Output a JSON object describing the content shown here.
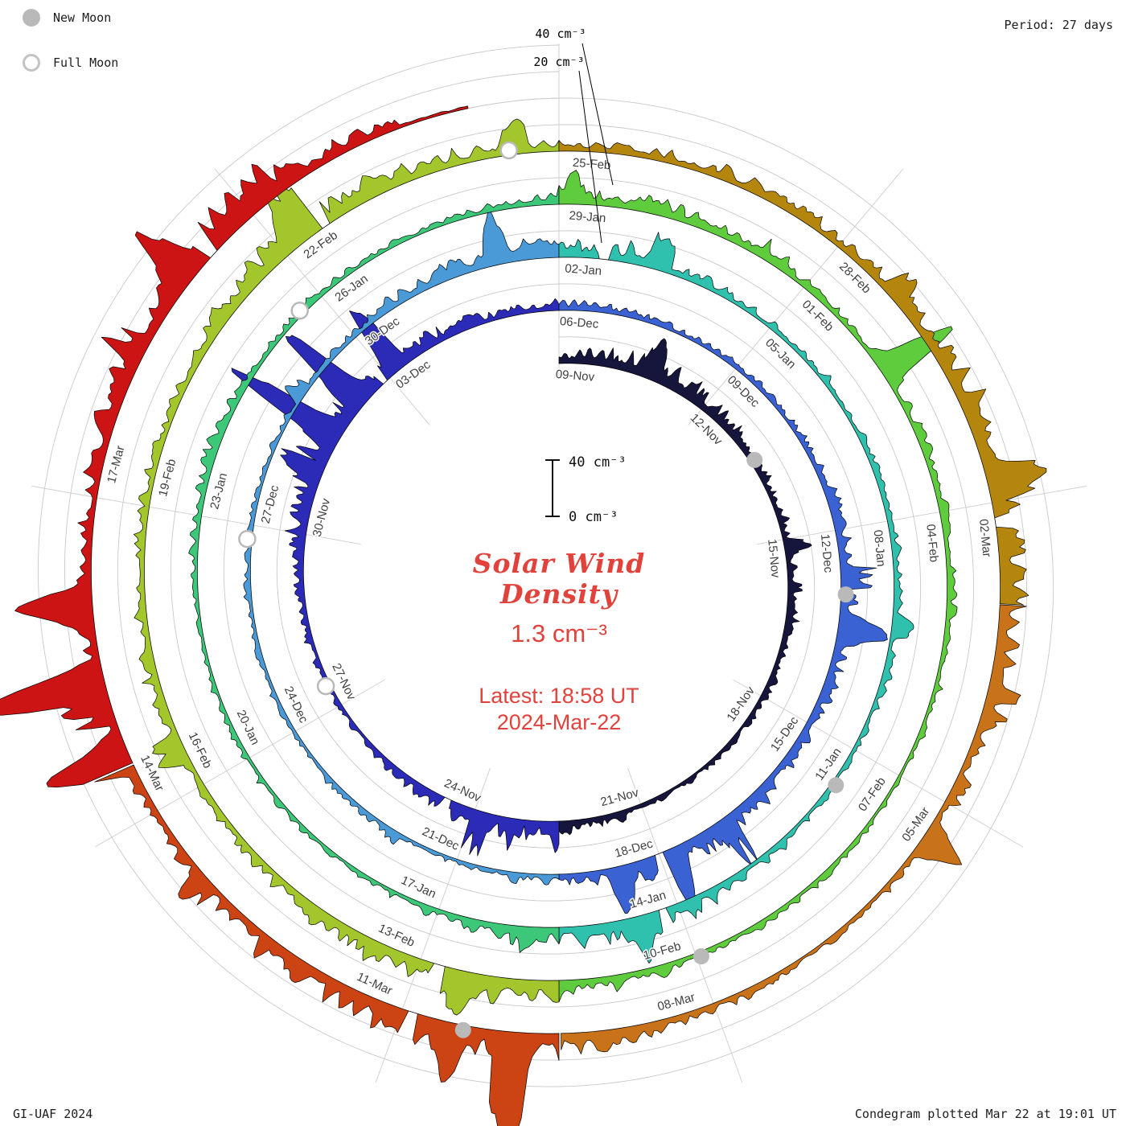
{
  "header": {
    "period_label": "Period: 27 days"
  },
  "legend": {
    "new_moon": "New Moon",
    "full_moon": "Full Moon"
  },
  "footer": {
    "credit": "GI-UAF 2024",
    "plotted": "Condegram plotted Mar 22 at 19:01 UT"
  },
  "center": {
    "title_line1": "Solar Wind",
    "title_line2": "Density",
    "current_value": "1.3 cm⁻³",
    "latest_line1": "Latest: 18:58 UT",
    "latest_line2": "2024-Mar-22",
    "scalebar_top": "40 cm⁻³",
    "scalebar_bottom": "0 cm⁻³"
  },
  "scale_annotations": [
    "40 cm⁻³",
    "20 cm⁻³"
  ],
  "colors": {
    "accent_red": "#e2423c",
    "grid": "#c9c9c9",
    "spoke": "#d2d2d2",
    "trace_outline": "#000000",
    "moon_gray": "#b9b9b9",
    "label_gray": "#3f3f3f"
  },
  "chart_data": {
    "type": "area",
    "layout": "spiral condegram, one 27-day solar rotation per revolution, time runs clockwise from top, radius grows outward with time",
    "title": "Solar Wind Density",
    "units": "cm⁻³",
    "period_days": 27,
    "start_label": "09-Nov",
    "end_label": "2024-Mar-22",
    "radial_scale": {
      "min": 0,
      "gridline_step": 20,
      "gridline_max": 40
    },
    "days_per_label": 3,
    "date_labels": [
      "09-Nov",
      "12-Nov",
      "15-Nov",
      "18-Nov",
      "21-Nov",
      "24-Nov",
      "27-Nov",
      "30-Nov",
      "03-Dec",
      "06-Dec",
      "09-Dec",
      "12-Dec",
      "15-Dec",
      "18-Dec",
      "21-Dec",
      "24-Dec",
      "27-Dec",
      "30-Dec",
      "02-Jan",
      "05-Jan",
      "08-Jan",
      "11-Jan",
      "14-Jan",
      "17-Jan",
      "20-Jan",
      "23-Jan",
      "26-Jan",
      "29-Jan",
      "01-Feb",
      "04-Feb",
      "07-Feb",
      "10-Feb",
      "13-Feb",
      "16-Feb",
      "19-Feb",
      "22-Feb",
      "25-Feb",
      "28-Feb",
      "02-Mar",
      "05-Mar",
      "08-Mar",
      "11-Mar",
      "14-Mar",
      "17-Mar"
    ],
    "color_segments": [
      {
        "start": 0,
        "end": 13.5,
        "color": "#16163d"
      },
      {
        "start": 13.5,
        "end": 27,
        "color": "#2b2bb8"
      },
      {
        "start": 27,
        "end": 40.5,
        "color": "#3a62d2"
      },
      {
        "start": 40.5,
        "end": 54,
        "color": "#4b9ad8"
      },
      {
        "start": 54,
        "end": 67.5,
        "color": "#2fc0ae"
      },
      {
        "start": 67.5,
        "end": 81,
        "color": "#3cc878"
      },
      {
        "start": 81,
        "end": 94.5,
        "color": "#5fcc3e"
      },
      {
        "start": 94.5,
        "end": 108,
        "color": "#a2c62c"
      },
      {
        "start": 108,
        "end": 115,
        "color": "#b5860e"
      },
      {
        "start": 115,
        "end": 121.5,
        "color": "#c8731a"
      },
      {
        "start": 121.5,
        "end": 126.5,
        "color": "#cc4414"
      },
      {
        "start": 126.5,
        "end": 134.2,
        "color": "#cc1414"
      }
    ],
    "daily_mean_density_estimated": [
      5,
      12,
      14,
      10,
      6,
      4,
      5,
      8,
      6,
      4,
      3,
      3,
      4,
      6,
      10,
      9,
      7,
      4,
      3,
      4,
      5,
      10,
      16,
      18,
      14,
      8,
      5,
      6,
      5,
      4,
      4,
      3,
      5,
      9,
      12,
      8,
      6,
      8,
      13,
      12,
      7,
      4,
      3,
      3,
      4,
      3,
      3,
      4,
      3,
      3,
      4,
      5,
      8,
      10,
      9,
      7,
      6,
      4,
      3,
      4,
      6,
      5,
      4,
      3,
      4,
      6,
      10,
      11,
      8,
      5,
      3,
      3,
      4,
      3,
      3,
      5,
      6,
      5,
      4,
      3,
      4,
      8,
      9,
      7,
      5,
      4,
      5,
      6,
      5,
      4,
      3,
      3,
      4,
      5,
      8,
      12,
      13,
      10,
      6,
      5,
      8,
      7,
      6,
      5,
      10,
      14,
      12,
      8,
      6,
      7,
      8,
      6,
      8,
      16,
      18,
      14,
      9,
      5,
      4,
      3,
      5,
      10,
      14,
      16,
      12,
      7,
      6,
      9,
      8,
      7,
      12,
      16,
      18,
      8
    ],
    "latest_value": 1.3,
    "spikes": [
      {
        "day": 1.8,
        "value": 26
      },
      {
        "day": 22.7,
        "value": 85
      },
      {
        "day": 23.4,
        "value": 68
      },
      {
        "day": 24.2,
        "value": 45
      },
      {
        "day": 34.5,
        "value": 32
      },
      {
        "day": 38.8,
        "value": 36
      },
      {
        "day": 39.6,
        "value": 30
      },
      {
        "day": 53.2,
        "value": 28
      },
      {
        "day": 66.5,
        "value": 26
      },
      {
        "day": 85.3,
        "value": 58
      },
      {
        "day": 95.5,
        "value": 28
      },
      {
        "day": 105.2,
        "value": 30
      },
      {
        "day": 113.8,
        "value": 34
      },
      {
        "day": 117.4,
        "value": 30
      },
      {
        "day": 121.9,
        "value": 55
      },
      {
        "day": 122.5,
        "value": 30
      },
      {
        "day": 126.6,
        "value": 62
      },
      {
        "day": 127.3,
        "value": 75
      },
      {
        "day": 128.0,
        "value": 50
      },
      {
        "day": 131.2,
        "value": 32
      }
    ],
    "data_gaps": [
      15.5,
      23.9,
      39.0,
      54.6,
      66.2,
      95.8,
      105.5,
      114.2,
      122.9,
      131.5
    ],
    "moon_events": {
      "new_moon_days": [
        4.4,
        33.98,
        63.5,
        92.95,
        122.4
      ],
      "full_moon_days": [
        18.4,
        47.8,
        77.7,
        107.5
      ]
    }
  }
}
